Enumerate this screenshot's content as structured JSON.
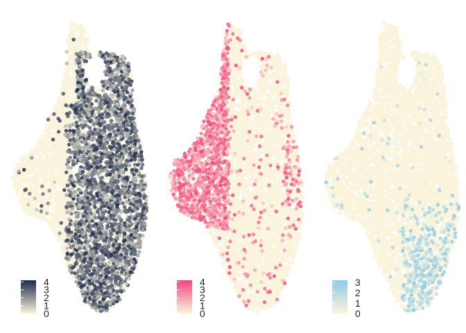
{
  "chart_data": [
    {
      "type": "scatter",
      "title": "",
      "xlabel": "",
      "ylabel": "",
      "grid": false,
      "legend": {
        "placement": "bottom-left",
        "type": "colorbar",
        "ticks": [
          "4",
          "3",
          "2",
          "1",
          "0"
        ],
        "range": [
          0,
          4.2
        ]
      },
      "colors": {
        "low": "#fbf4dc",
        "high": "#1c2a4a"
      },
      "enriched_region": "right lobe",
      "point_count_approx": 7000
    },
    {
      "type": "scatter",
      "title": "",
      "xlabel": "",
      "ylabel": "",
      "grid": false,
      "legend": {
        "placement": "bottom-left",
        "type": "colorbar",
        "ticks": [
          "4",
          "3",
          "2",
          "1",
          "0"
        ],
        "range": [
          0,
          4.2
        ]
      },
      "colors": {
        "low": "#fbf4dc",
        "high": "#f0457c"
      },
      "enriched_region": "left lobe and upper stem",
      "point_count_approx": 7000
    },
    {
      "type": "scatter",
      "title": "",
      "xlabel": "",
      "ylabel": "",
      "grid": false,
      "legend": {
        "placement": "bottom-left",
        "type": "colorbar",
        "ticks": [
          "3",
          "2",
          "1",
          "0"
        ],
        "range": [
          0,
          3.2
        ]
      },
      "colors": {
        "low": "#fbf4dc",
        "high": "#8ccbe6"
      },
      "enriched_region": "lower right",
      "point_count_approx": 7000
    }
  ]
}
